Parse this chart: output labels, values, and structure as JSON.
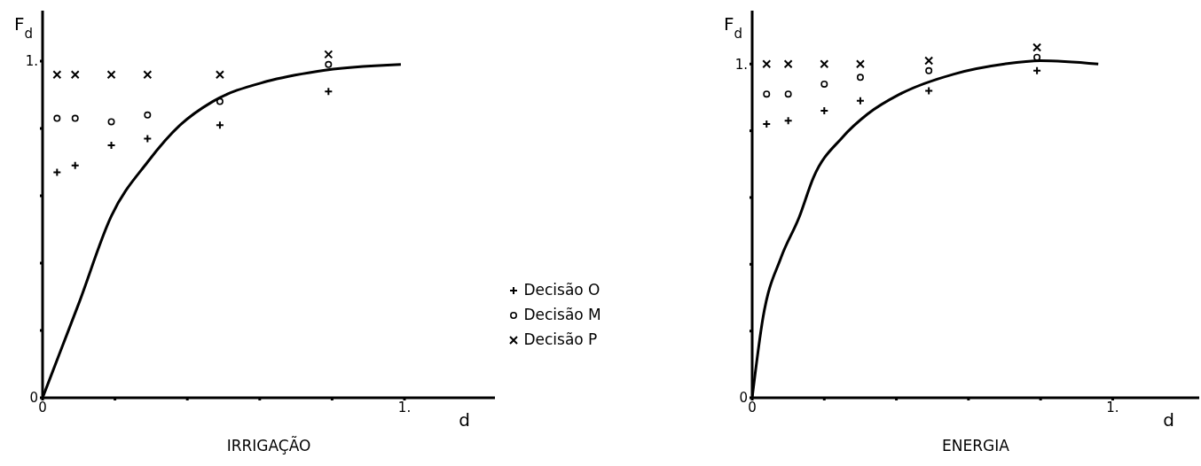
{
  "chart_data": [
    {
      "type": "scatter",
      "title": "IRRIGAÇÃO",
      "xlabel": "d",
      "ylabel": "F$_{d}$",
      "x": [
        0.04,
        0.09,
        0.19,
        0.29,
        0.49,
        0.79
      ],
      "series": [
        {
          "name": "Decisão O",
          "color": "#000000",
          "marker": "cross",
          "values": [
            0.67,
            0.69,
            0.75,
            0.77,
            0.81,
            0.91
          ]
        },
        {
          "name": "Decisão M",
          "color": "#000000",
          "marker": "circle",
          "values": [
            0.83,
            0.83,
            0.82,
            0.84,
            0.88,
            0.99
          ]
        },
        {
          "name": "Decisão P",
          "color": "#000000",
          "marker": "x",
          "values": [
            0.96,
            0.96,
            0.96,
            0.96,
            0.96,
            1.02
          ]
        },
        {
          "type": "line",
          "color": "#000000",
          "marker": "none",
          "x": [
            0,
            0.05,
            0.1,
            0.19,
            0.29,
            0.38,
            0.47,
            0.62,
            0.76,
            0.99
          ],
          "values": [
            0,
            0.14,
            0.28,
            0.54,
            0.7,
            0.81,
            0.88,
            0.94,
            0.97,
            0.99
          ]
        }
      ],
      "xlim": [
        0,
        1.25
      ],
      "ylim": [
        0,
        1.15
      ],
      "xticks": [
        {
          "value": 0,
          "label": "0"
        },
        {
          "value": 0.2,
          "label": null
        },
        {
          "value": 0.4,
          "label": null
        },
        {
          "value": 0.6,
          "label": null
        },
        {
          "value": 0.8,
          "label": null
        },
        {
          "value": 1,
          "label": "1."
        }
      ],
      "yticks": [
        {
          "value": 0,
          "label": "0"
        },
        {
          "value": 0.2,
          "label": null
        },
        {
          "value": 0.4,
          "label": null
        },
        {
          "value": 0.6,
          "label": null
        },
        {
          "value": 0.8,
          "label": null
        },
        {
          "value": 1,
          "label": "1."
        }
      ],
      "legend": "right",
      "grid": false
    },
    {
      "type": "scatter",
      "title": "ENERGIA",
      "xlabel": "d",
      "ylabel": "F$_{d}$",
      "x": [
        0.04,
        0.1,
        0.2,
        0.3,
        0.49,
        0.79
      ],
      "series": [
        {
          "color": "#000000",
          "marker": "cross",
          "values": [
            0.82,
            0.83,
            0.86,
            0.89,
            0.92,
            0.98
          ]
        },
        {
          "color": "#000000",
          "marker": "circle",
          "values": [
            0.91,
            0.91,
            0.94,
            0.96,
            0.98,
            1.02
          ]
        },
        {
          "color": "#000000",
          "marker": "x",
          "values": [
            1.0,
            1.0,
            1.0,
            1.0,
            1.01,
            1.05
          ]
        },
        {
          "type": "line",
          "color": "#000000",
          "marker": "none",
          "x": [
            0,
            0.03,
            0.08,
            0.13,
            0.17,
            0.25,
            0.32,
            0.41,
            0.56,
            0.7,
            0.8,
            0.96
          ],
          "values": [
            0,
            0.24,
            0.42,
            0.54,
            0.66,
            0.78,
            0.85,
            0.91,
            0.97,
            1.0,
            1.01,
            1.0
          ]
        }
      ],
      "xlim": [
        0,
        1.24
      ],
      "ylim": [
        0,
        1.16
      ],
      "xticks": [
        {
          "value": 0,
          "label": "0"
        },
        {
          "value": 0.2,
          "label": null
        },
        {
          "value": 0.4,
          "label": null
        },
        {
          "value": 0.6,
          "label": null
        },
        {
          "value": 0.8,
          "label": null
        },
        {
          "value": 1,
          "label": "1."
        }
      ],
      "yticks": [
        {
          "value": 0,
          "label": "0"
        },
        {
          "value": 0.2,
          "label": null
        },
        {
          "value": 0.4,
          "label": null
        },
        {
          "value": 0.6,
          "label": null
        },
        {
          "value": 0.8,
          "label": null
        },
        {
          "value": 1,
          "label": "1."
        }
      ],
      "grid": false
    }
  ]
}
